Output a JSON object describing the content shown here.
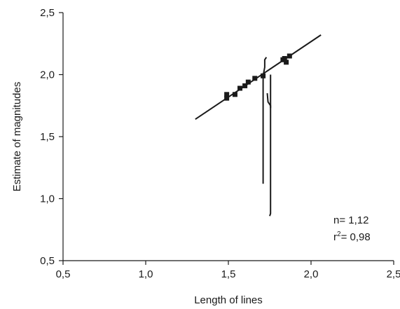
{
  "chart_data": {
    "type": "scatter",
    "title": "",
    "xlabel": "Length of lines",
    "ylabel": "Estimate of magnitudes",
    "xlim": [
      0.5,
      2.5
    ],
    "ylim": [
      0.5,
      2.5
    ],
    "xticks": [
      0.5,
      1.0,
      1.5,
      2.0,
      2.5
    ],
    "yticks": [
      0.5,
      1.0,
      1.5,
      2.0,
      2.5
    ],
    "xtick_labels": [
      "0,5",
      "1,0",
      "1,5",
      "2,0",
      "2,5"
    ],
    "ytick_labels": [
      "0,5",
      "1,0",
      "1,5",
      "2,0",
      "2,5"
    ],
    "grid": false,
    "legend": "none",
    "points": [
      {
        "x": 1.49,
        "y": 1.84
      },
      {
        "x": 1.49,
        "y": 1.81
      },
      {
        "x": 1.54,
        "y": 1.84
      },
      {
        "x": 1.57,
        "y": 1.89
      },
      {
        "x": 1.6,
        "y": 1.91
      },
      {
        "x": 1.62,
        "y": 1.94
      },
      {
        "x": 1.66,
        "y": 1.97
      },
      {
        "x": 1.71,
        "y": 1.99
      },
      {
        "x": 1.83,
        "y": 2.12
      },
      {
        "x": 1.84,
        "y": 2.13
      },
      {
        "x": 1.85,
        "y": 2.1
      },
      {
        "x": 1.87,
        "y": 2.15
      }
    ],
    "fit_line": {
      "x": [
        1.3,
        2.06
      ],
      "y": [
        1.64,
        2.32
      ]
    },
    "curves": [
      [
        [
          1.73,
          2.14
        ],
        [
          1.72,
          2.12
        ],
        [
          1.72,
          2.06
        ],
        [
          1.71,
          1.99
        ],
        [
          1.71,
          1.51
        ],
        [
          1.71,
          1.12
        ]
      ],
      [
        [
          1.735,
          1.85
        ],
        [
          1.74,
          1.78
        ],
        [
          1.755,
          1.75
        ],
        [
          1.755,
          1.73
        ]
      ],
      [
        [
          1.755,
          2.0
        ],
        [
          1.755,
          1.6
        ],
        [
          1.755,
          0.88
        ],
        [
          1.75,
          0.86
        ]
      ]
    ],
    "annotations": {
      "n_text": "n= 1,12",
      "r2_prefix": "r",
      "r2_superscript": "2",
      "r2_value": "= 0,98"
    }
  }
}
